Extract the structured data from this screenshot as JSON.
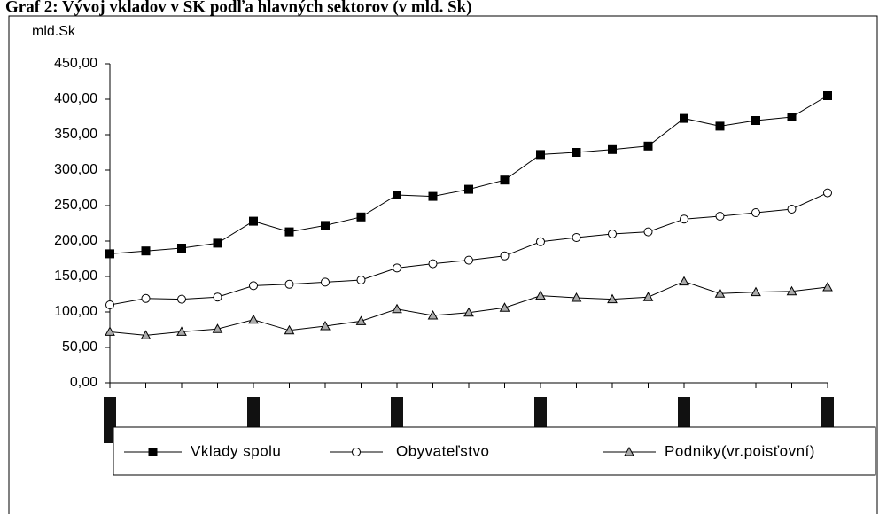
{
  "chart_data": {
    "type": "line",
    "title": "Graf 2: Vývoj vkladov v SK podľa hlavných sektorov (v mld. Sk)",
    "y_label": "mld.Sk",
    "categories": [
      null,
      null,
      null,
      null,
      null,
      null,
      null,
      null,
      null,
      null,
      null,
      null,
      null,
      null,
      null,
      null,
      null,
      null,
      null,
      null,
      null
    ],
    "series": [
      {
        "name": "Vklady spolu",
        "color": "#000000",
        "marker": "square",
        "values": [
          182,
          186,
          190,
          197,
          228,
          213,
          222,
          234,
          265,
          263,
          273,
          286,
          322,
          325,
          329,
          334,
          373,
          362,
          370,
          375,
          405
        ]
      },
      {
        "name": "Obyvateľstvo",
        "color": "#000000",
        "marker": "circle",
        "values": [
          110,
          119,
          118,
          121,
          137,
          139,
          142,
          145,
          162,
          168,
          173,
          179,
          199,
          205,
          210,
          213,
          231,
          235,
          240,
          245,
          268
        ]
      },
      {
        "name": "Podniky(vr.poisťovní)",
        "color": "#000000",
        "marker": "triangle",
        "values": [
          72,
          67,
          72,
          76,
          89,
          74,
          80,
          87,
          104,
          95,
          99,
          106,
          123,
          120,
          118,
          121,
          143,
          126,
          128,
          129,
          135
        ]
      }
    ],
    "ylim": [
      0,
      450
    ],
    "yticks": [
      {
        "value": 0,
        "label": "0,00"
      },
      {
        "value": 50,
        "label": "50,00"
      },
      {
        "value": 100,
        "label": "100,00"
      },
      {
        "value": 150,
        "label": "150,00"
      },
      {
        "value": 200,
        "label": "200,00"
      },
      {
        "value": 250,
        "label": "250,00"
      },
      {
        "value": 300,
        "label": "300,00"
      },
      {
        "value": 350,
        "label": "350,00"
      },
      {
        "value": 400,
        "label": "400,00"
      },
      {
        "value": 450,
        "label": "450,00"
      }
    ],
    "legend": "bottom"
  }
}
